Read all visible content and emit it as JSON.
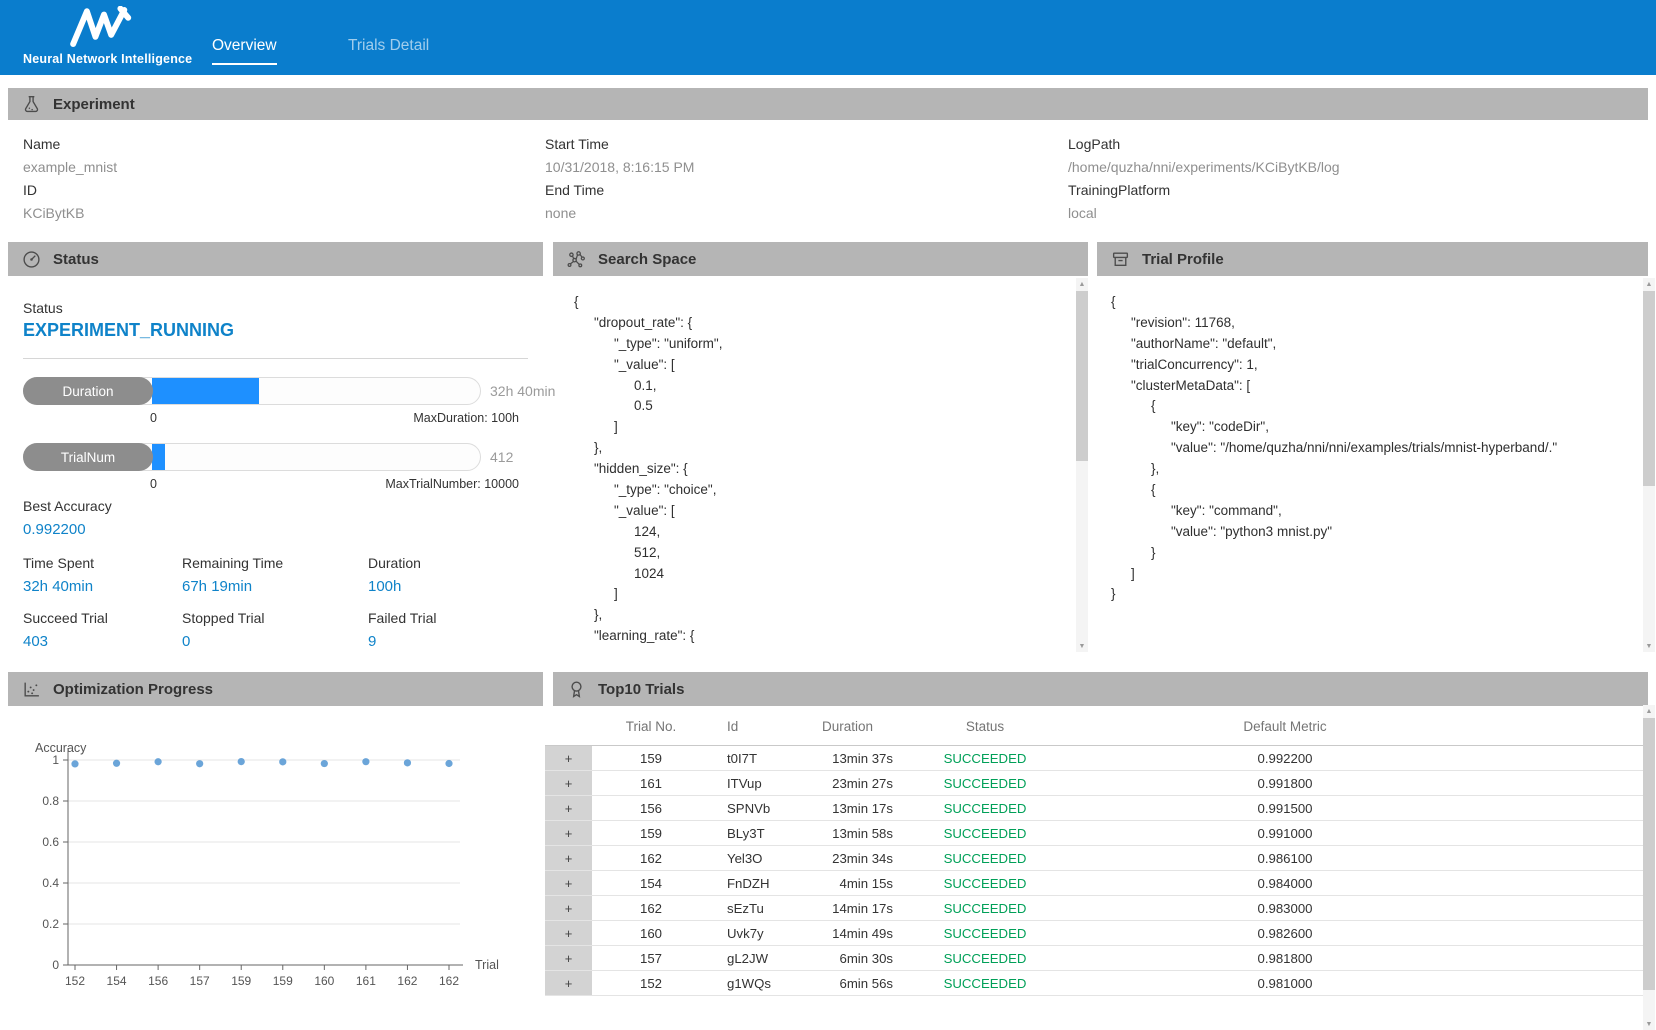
{
  "header": {
    "brand_line": "Neural Network Intelligence",
    "tabs": [
      {
        "label": "Overview",
        "active": true
      },
      {
        "label": "Trials Detail",
        "active": false
      }
    ]
  },
  "experiment": {
    "title": "Experiment",
    "fields": [
      {
        "label": "Name",
        "value": "example_mnist"
      },
      {
        "label": "ID",
        "value": "KCiBytKB"
      },
      {
        "label": "Start Time",
        "value": "10/31/2018, 8:16:15 PM"
      },
      {
        "label": "End Time",
        "value": "none"
      },
      {
        "label": "LogPath",
        "value": "/home/quzha/nni/experiments/KCiBytKB/log"
      },
      {
        "label": "TrainingPlatform",
        "value": "local"
      }
    ]
  },
  "status_panel": {
    "title": "Status",
    "status_label": "Status",
    "status_value": "EXPERIMENT_RUNNING",
    "progress_bars": [
      {
        "label": "Duration",
        "value_text": "32h 40min",
        "min_text": "0",
        "max_text": "MaxDuration: 100h",
        "percent": 32.7
      },
      {
        "label": "TrialNum",
        "value_text": "412",
        "min_text": "0",
        "max_text": "MaxTrialNumber: 10000",
        "percent": 4.1
      }
    ],
    "best_accuracy_label": "Best Accuracy",
    "best_accuracy_value": "0.992200",
    "stats": [
      {
        "label": "Time Spent",
        "value": "32h 40min"
      },
      {
        "label": "Remaining Time",
        "value": "67h 19min"
      },
      {
        "label": "Duration",
        "value": "100h"
      },
      {
        "label": "Succeed Trial",
        "value": "403"
      },
      {
        "label": "Stopped Trial",
        "value": "0"
      },
      {
        "label": "Failed Trial",
        "value": "9"
      }
    ]
  },
  "search_space": {
    "title": "Search Space",
    "json_lines": [
      "{",
      "  \"dropout_rate\": {",
      "    \"_type\": \"uniform\",",
      "    \"_value\": [",
      "      0.1,",
      "      0.5",
      "    ]",
      "  },",
      "  \"hidden_size\": {",
      "    \"_type\": \"choice\",",
      "    \"_value\": [",
      "      124,",
      "      512,",
      "      1024",
      "    ]",
      "  },",
      "  \"learning_rate\": {"
    ]
  },
  "trial_profile": {
    "title": "Trial Profile",
    "json_lines": [
      "{",
      "  \"revision\": 11768,",
      "  \"authorName\": \"default\",",
      "  \"trialConcurrency\": 1,",
      "  \"clusterMetaData\": [",
      "    {",
      "      \"key\": \"codeDir\",",
      "      \"value\": \"/home/quzha/nni/nni/examples/trials/mnist-hyperband/.\"",
      "    },",
      "    {",
      "      \"key\": \"command\",",
      "      \"value\": \"python3 mnist.py\"",
      "    }",
      "  ]",
      "}"
    ]
  },
  "chart_data": {
    "type": "scatter",
    "title": "Optimization Progress",
    "xlabel": "Trial",
    "ylabel": "Accuracy",
    "ylim": [
      0,
      1
    ],
    "y_ticks": [
      0,
      0.2,
      0.4,
      0.6,
      0.8,
      1
    ],
    "grid": true,
    "legend_position": "none",
    "x_tick_labels": [
      "152",
      "154",
      "156",
      "157",
      "159",
      "159",
      "160",
      "161",
      "162",
      "162"
    ],
    "points": [
      {
        "trial": "152",
        "accuracy": 0.981
      },
      {
        "trial": "154",
        "accuracy": 0.984
      },
      {
        "trial": "156",
        "accuracy": 0.9915
      },
      {
        "trial": "157",
        "accuracy": 0.9818
      },
      {
        "trial": "159",
        "accuracy": 0.9922
      },
      {
        "trial": "159",
        "accuracy": 0.991
      },
      {
        "trial": "160",
        "accuracy": 0.9826
      },
      {
        "trial": "161",
        "accuracy": 0.9918
      },
      {
        "trial": "162",
        "accuracy": 0.9861
      },
      {
        "trial": "162",
        "accuracy": 0.983
      }
    ]
  },
  "top_trials": {
    "title": "Top10 Trials",
    "expand_symbol": "+",
    "columns": [
      "Trial No.",
      "Id",
      "Duration",
      "Status",
      "Default Metric"
    ],
    "rows": [
      {
        "trial_no": "159",
        "id": "t0I7T",
        "duration": "13min 37s",
        "status": "SUCCEEDED",
        "metric": "0.992200"
      },
      {
        "trial_no": "161",
        "id": "ITVup",
        "duration": "23min 27s",
        "status": "SUCCEEDED",
        "metric": "0.991800"
      },
      {
        "trial_no": "156",
        "id": "SPNVb",
        "duration": "13min 17s",
        "status": "SUCCEEDED",
        "metric": "0.991500"
      },
      {
        "trial_no": "159",
        "id": "BLy3T",
        "duration": "13min 58s",
        "status": "SUCCEEDED",
        "metric": "0.991000"
      },
      {
        "trial_no": "162",
        "id": "Yel3O",
        "duration": "23min 34s",
        "status": "SUCCEEDED",
        "metric": "0.986100"
      },
      {
        "trial_no": "154",
        "id": "FnDZH",
        "duration": "4min 15s",
        "status": "SUCCEEDED",
        "metric": "0.984000"
      },
      {
        "trial_no": "162",
        "id": "sEzTu",
        "duration": "14min 17s",
        "status": "SUCCEEDED",
        "metric": "0.983000"
      },
      {
        "trial_no": "160",
        "id": "Uvk7y",
        "duration": "14min 49s",
        "status": "SUCCEEDED",
        "metric": "0.982600"
      },
      {
        "trial_no": "157",
        "id": "gL2JW",
        "duration": "6min 30s",
        "status": "SUCCEEDED",
        "metric": "0.981800"
      },
      {
        "trial_no": "152",
        "id": "g1WQs",
        "duration": "6min 56s",
        "status": "SUCCEEDED",
        "metric": "0.981000"
      }
    ]
  },
  "colors": {
    "header_blue": "#0a7dcd",
    "section_bar_gray": "#b5b5b5",
    "accent_blue": "#0f83c9",
    "progress_fill_blue": "#1e90ff",
    "success_green": "#00a058",
    "dot_blue": "#5b9bd5"
  }
}
